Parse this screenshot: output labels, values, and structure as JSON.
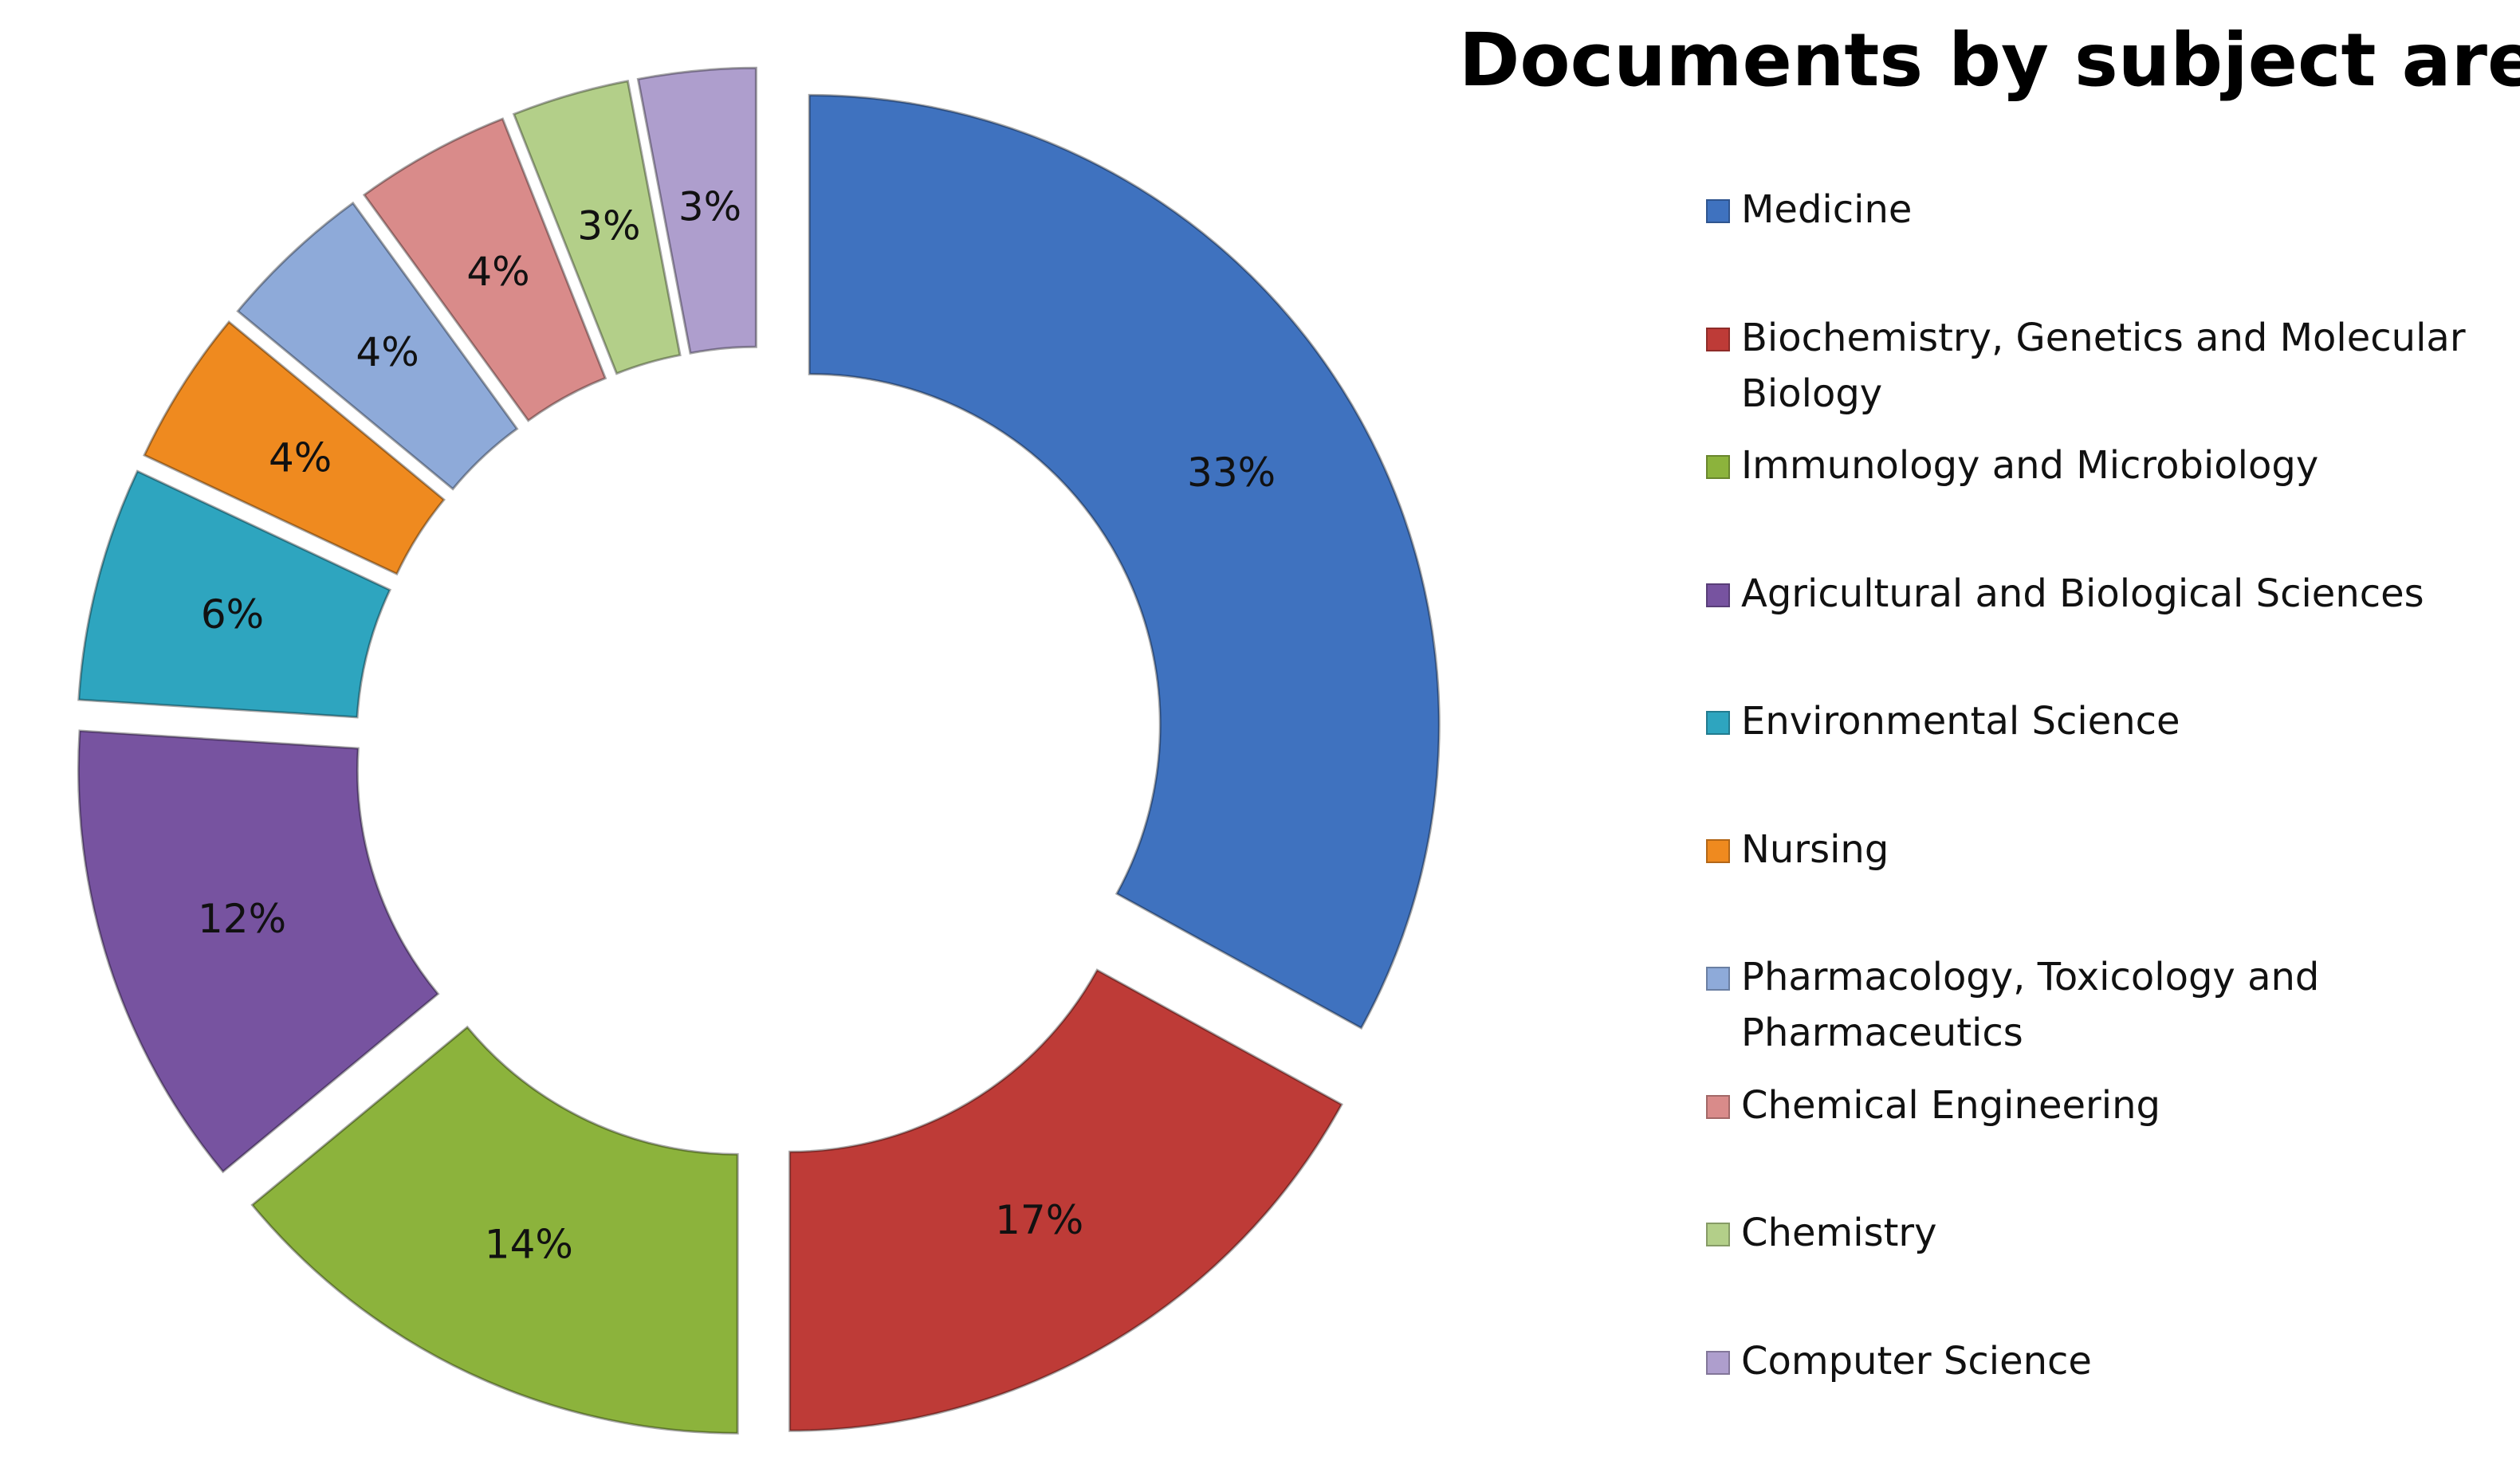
{
  "chart_data": {
    "type": "donut",
    "title": "Documents by subject area",
    "categories": [
      "Medicine",
      "Biochemistry, Genetics and Molecular Biology",
      "Immunology and Microbiology",
      "Agricultural and Biological Sciences",
      "Environmental Science",
      "Nursing",
      "Pharmacology, Toxicology and Pharmaceutics",
      "Chemical Engineering",
      "Chemistry",
      "Computer Science"
    ],
    "values": [
      33,
      17,
      14,
      12,
      6,
      4,
      4,
      4,
      3,
      3
    ],
    "value_labels": [
      "33%",
      "17%",
      "14%",
      "12%",
      "6%",
      "4%",
      "4%",
      "4%",
      "3%",
      "3%"
    ],
    "colors": [
      "#3f72bf",
      "#be3b37",
      "#8cb33c",
      "#7753a0",
      "#2ea5bf",
      "#ef8a1f",
      "#8eaad9",
      "#d98b8a",
      "#b3cf89",
      "#ae9ecd"
    ],
    "legend": "right"
  }
}
